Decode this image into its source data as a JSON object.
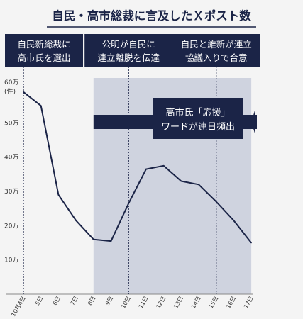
{
  "chart_data": {
    "type": "line",
    "title": "自民・高市総裁に言及したＸポスト数",
    "y_unit_label": [
      "60万",
      "(件)"
    ],
    "ylim": [
      0,
      600000
    ],
    "y_ticks": [
      {
        "value": 100000,
        "label": "10万"
      },
      {
        "value": 200000,
        "label": "20万"
      },
      {
        "value": 300000,
        "label": "30万"
      },
      {
        "value": 400000,
        "label": "40万"
      },
      {
        "value": 500000,
        "label": "50万"
      }
    ],
    "categories": [
      "10月4日",
      "5日",
      "6日",
      "7日",
      "8日",
      "9日",
      "10日",
      "11日",
      "12日",
      "13日",
      "14日",
      "15日",
      "16日",
      "17日"
    ],
    "values": [
      590000,
      550000,
      290000,
      215000,
      160000,
      155000,
      265000,
      365000,
      375000,
      330000,
      320000,
      270000,
      215000,
      150000
    ],
    "line_color": "#1b2447",
    "shade_color": "#cfd3df",
    "shade_range": [
      "8日",
      "17日"
    ],
    "events": [
      {
        "at": "10月4日",
        "lines": [
          "自民新総裁に",
          "高市氏を選出"
        ]
      },
      {
        "at": "10日",
        "lines": [
          "公明が自民に",
          "連立離脱を伝達"
        ]
      },
      {
        "at": "15日",
        "lines": [
          "自民と維新が連立",
          "協議入りで合意"
        ]
      }
    ],
    "arrow_annotation": {
      "from": "8日",
      "to": "17日",
      "lines": [
        "高市氏「応援」",
        "ワードが連日頻出"
      ]
    }
  }
}
